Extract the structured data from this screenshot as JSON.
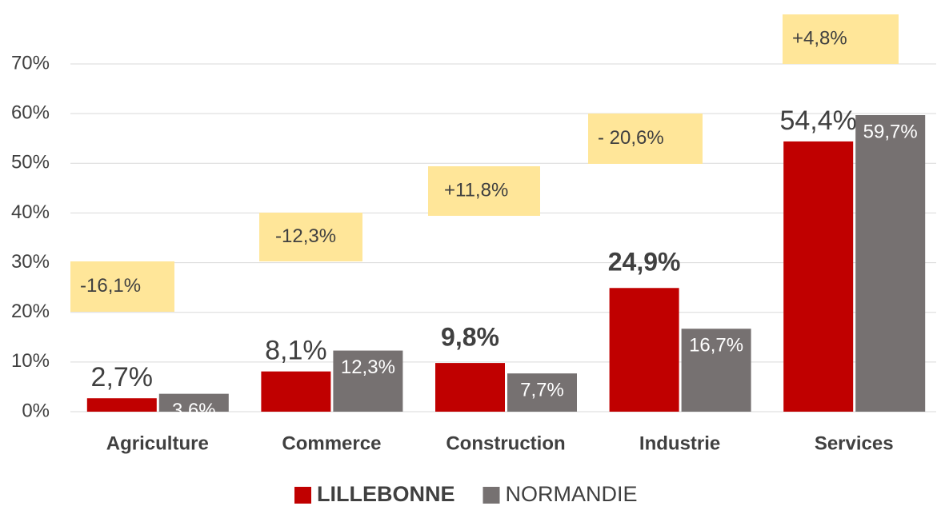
{
  "chart_data": {
    "type": "bar",
    "categories": [
      "Agriculture",
      "Commerce",
      "Construction",
      "Industrie",
      "Services"
    ],
    "series": [
      {
        "name": "LILLEBONNE",
        "color": "#c00000",
        "values": [
          2.7,
          8.1,
          9.8,
          24.9,
          54.4
        ],
        "value_labels": [
          "2,7%",
          "8,1%",
          "9,8%",
          "24,9%",
          "54,4%"
        ]
      },
      {
        "name": "NORMANDIE",
        "color": "#767171",
        "values": [
          3.6,
          12.3,
          7.7,
          16.7,
          59.7
        ],
        "value_labels": [
          "3,6%",
          "12,3%",
          "7,7%",
          "16,7%",
          "59,7%"
        ]
      }
    ],
    "annotations": [
      "-16,1%",
      "-12,3%",
      "+11,8%",
      "- 20,6%",
      "+4,8%"
    ],
    "ylim": [
      0,
      70
    ],
    "yticks": [
      {
        "value": 0,
        "label": "0%"
      },
      {
        "value": 10,
        "label": "10%"
      },
      {
        "value": 20,
        "label": "20%"
      },
      {
        "value": 30,
        "label": "30%"
      },
      {
        "value": 40,
        "label": "40%"
      },
      {
        "value": 50,
        "label": "50%"
      },
      {
        "value": 60,
        "label": "60%"
      },
      {
        "value": 70,
        "label": "70%"
      }
    ],
    "grid": true,
    "legend": "bottom"
  }
}
